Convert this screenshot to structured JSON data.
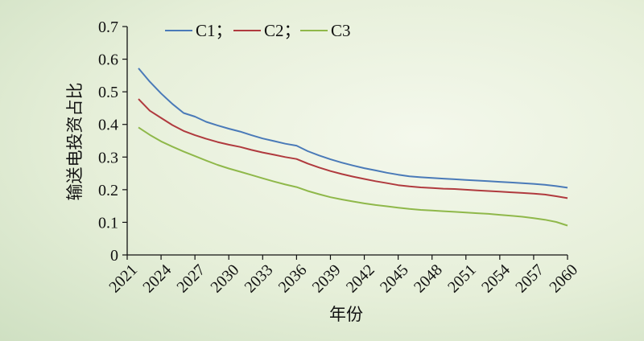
{
  "chart_data": {
    "type": "line",
    "xlabel": "年份",
    "ylabel": "输送电投资占比",
    "xlim": [
      2021,
      2060
    ],
    "ylim": [
      0,
      0.7
    ],
    "x_ticks": [
      "2021",
      "2024",
      "2027",
      "2030",
      "2033",
      "2036",
      "2039",
      "2042",
      "2045",
      "2048",
      "2051",
      "2054",
      "2057",
      "2060"
    ],
    "y_ticks": [
      "0",
      "0.1",
      "0.2",
      "0.3",
      "0.4",
      "0.5",
      "0.6",
      "0.7"
    ],
    "grid": false,
    "legend": {
      "placement": "top-left",
      "labels": [
        "C1；",
        "C2；",
        "C3"
      ]
    },
    "x": [
      2022,
      2023,
      2024,
      2025,
      2026,
      2027,
      2028,
      2029,
      2030,
      2031,
      2032,
      2033,
      2034,
      2035,
      2036,
      2037,
      2038,
      2039,
      2040,
      2041,
      2042,
      2043,
      2044,
      2045,
      2046,
      2047,
      2048,
      2049,
      2050,
      2051,
      2052,
      2053,
      2054,
      2055,
      2056,
      2057,
      2058,
      2059,
      2060
    ],
    "series": [
      {
        "name": "C1",
        "color": "#4a7ab8",
        "values": [
          0.572,
          0.531,
          0.495,
          0.463,
          0.435,
          0.424,
          0.408,
          0.397,
          0.387,
          0.378,
          0.367,
          0.357,
          0.349,
          0.341,
          0.335,
          0.318,
          0.305,
          0.293,
          0.283,
          0.274,
          0.266,
          0.259,
          0.252,
          0.246,
          0.241,
          0.238,
          0.236,
          0.234,
          0.232,
          0.23,
          0.228,
          0.226,
          0.224,
          0.222,
          0.22,
          0.218,
          0.215,
          0.211,
          0.206
        ]
      },
      {
        "name": "C2",
        "color": "#b03a3e",
        "values": [
          0.478,
          0.442,
          0.42,
          0.398,
          0.38,
          0.367,
          0.356,
          0.346,
          0.338,
          0.331,
          0.322,
          0.314,
          0.307,
          0.3,
          0.294,
          0.28,
          0.268,
          0.257,
          0.248,
          0.24,
          0.233,
          0.226,
          0.22,
          0.214,
          0.21,
          0.207,
          0.205,
          0.203,
          0.202,
          0.2,
          0.198,
          0.196,
          0.194,
          0.192,
          0.19,
          0.188,
          0.185,
          0.18,
          0.174
        ]
      },
      {
        "name": "C3",
        "color": "#8fb84a",
        "values": [
          0.391,
          0.368,
          0.348,
          0.332,
          0.317,
          0.303,
          0.289,
          0.276,
          0.265,
          0.255,
          0.245,
          0.235,
          0.225,
          0.216,
          0.208,
          0.196,
          0.186,
          0.177,
          0.17,
          0.164,
          0.158,
          0.153,
          0.149,
          0.145,
          0.141,
          0.138,
          0.136,
          0.134,
          0.132,
          0.13,
          0.128,
          0.126,
          0.123,
          0.12,
          0.117,
          0.113,
          0.108,
          0.101,
          0.09
        ]
      }
    ]
  }
}
